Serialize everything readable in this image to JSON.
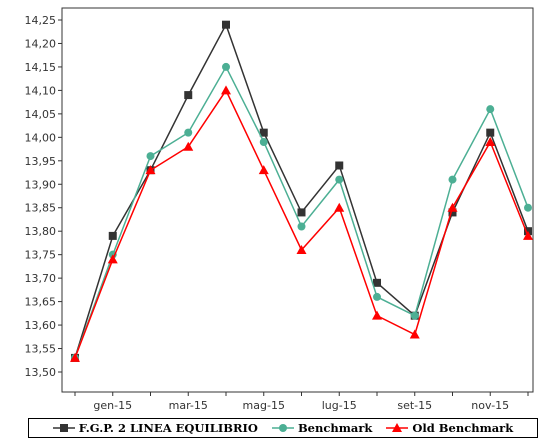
{
  "chart_data": {
    "type": "line",
    "title": "",
    "xlabel": "",
    "ylabel": "",
    "ylim": [
      13.5,
      14.25
    ],
    "yticks": [
      "13,50",
      "13,55",
      "13,60",
      "13,65",
      "13,70",
      "13,75",
      "13,80",
      "13,85",
      "13,90",
      "13,95",
      "14,00",
      "14,05",
      "14,10",
      "14,15",
      "14,20",
      "14,25"
    ],
    "xtick_labels": [
      "gen-15",
      "mar-15",
      "mag-15",
      "lug-15",
      "set-15",
      "nov-15"
    ],
    "x_count": 13,
    "xtick_positions": [
      1,
      3,
      5,
      7,
      9,
      11
    ],
    "grid": false,
    "legend_position": "bottom",
    "series": [
      {
        "name": "F.G.P. 2 LINEA EQUILIBRIO",
        "color": "#333333",
        "marker": "square",
        "values": [
          13.53,
          13.79,
          13.93,
          14.09,
          14.24,
          14.01,
          13.84,
          13.94,
          13.69,
          13.62,
          13.84,
          14.01,
          13.8
        ]
      },
      {
        "name": "Benchmark",
        "color": "#4caf94",
        "marker": "circle",
        "values": [
          13.53,
          13.75,
          13.96,
          14.01,
          14.15,
          13.99,
          13.81,
          13.91,
          13.66,
          13.62,
          13.91,
          14.06,
          13.85
        ]
      },
      {
        "name": "Old Benchmark",
        "color": "#ff0000",
        "marker": "triangle",
        "values": [
          13.53,
          13.74,
          13.93,
          13.98,
          14.1,
          13.93,
          13.76,
          13.85,
          13.62,
          13.58,
          13.85,
          13.99,
          13.79
        ]
      }
    ]
  }
}
